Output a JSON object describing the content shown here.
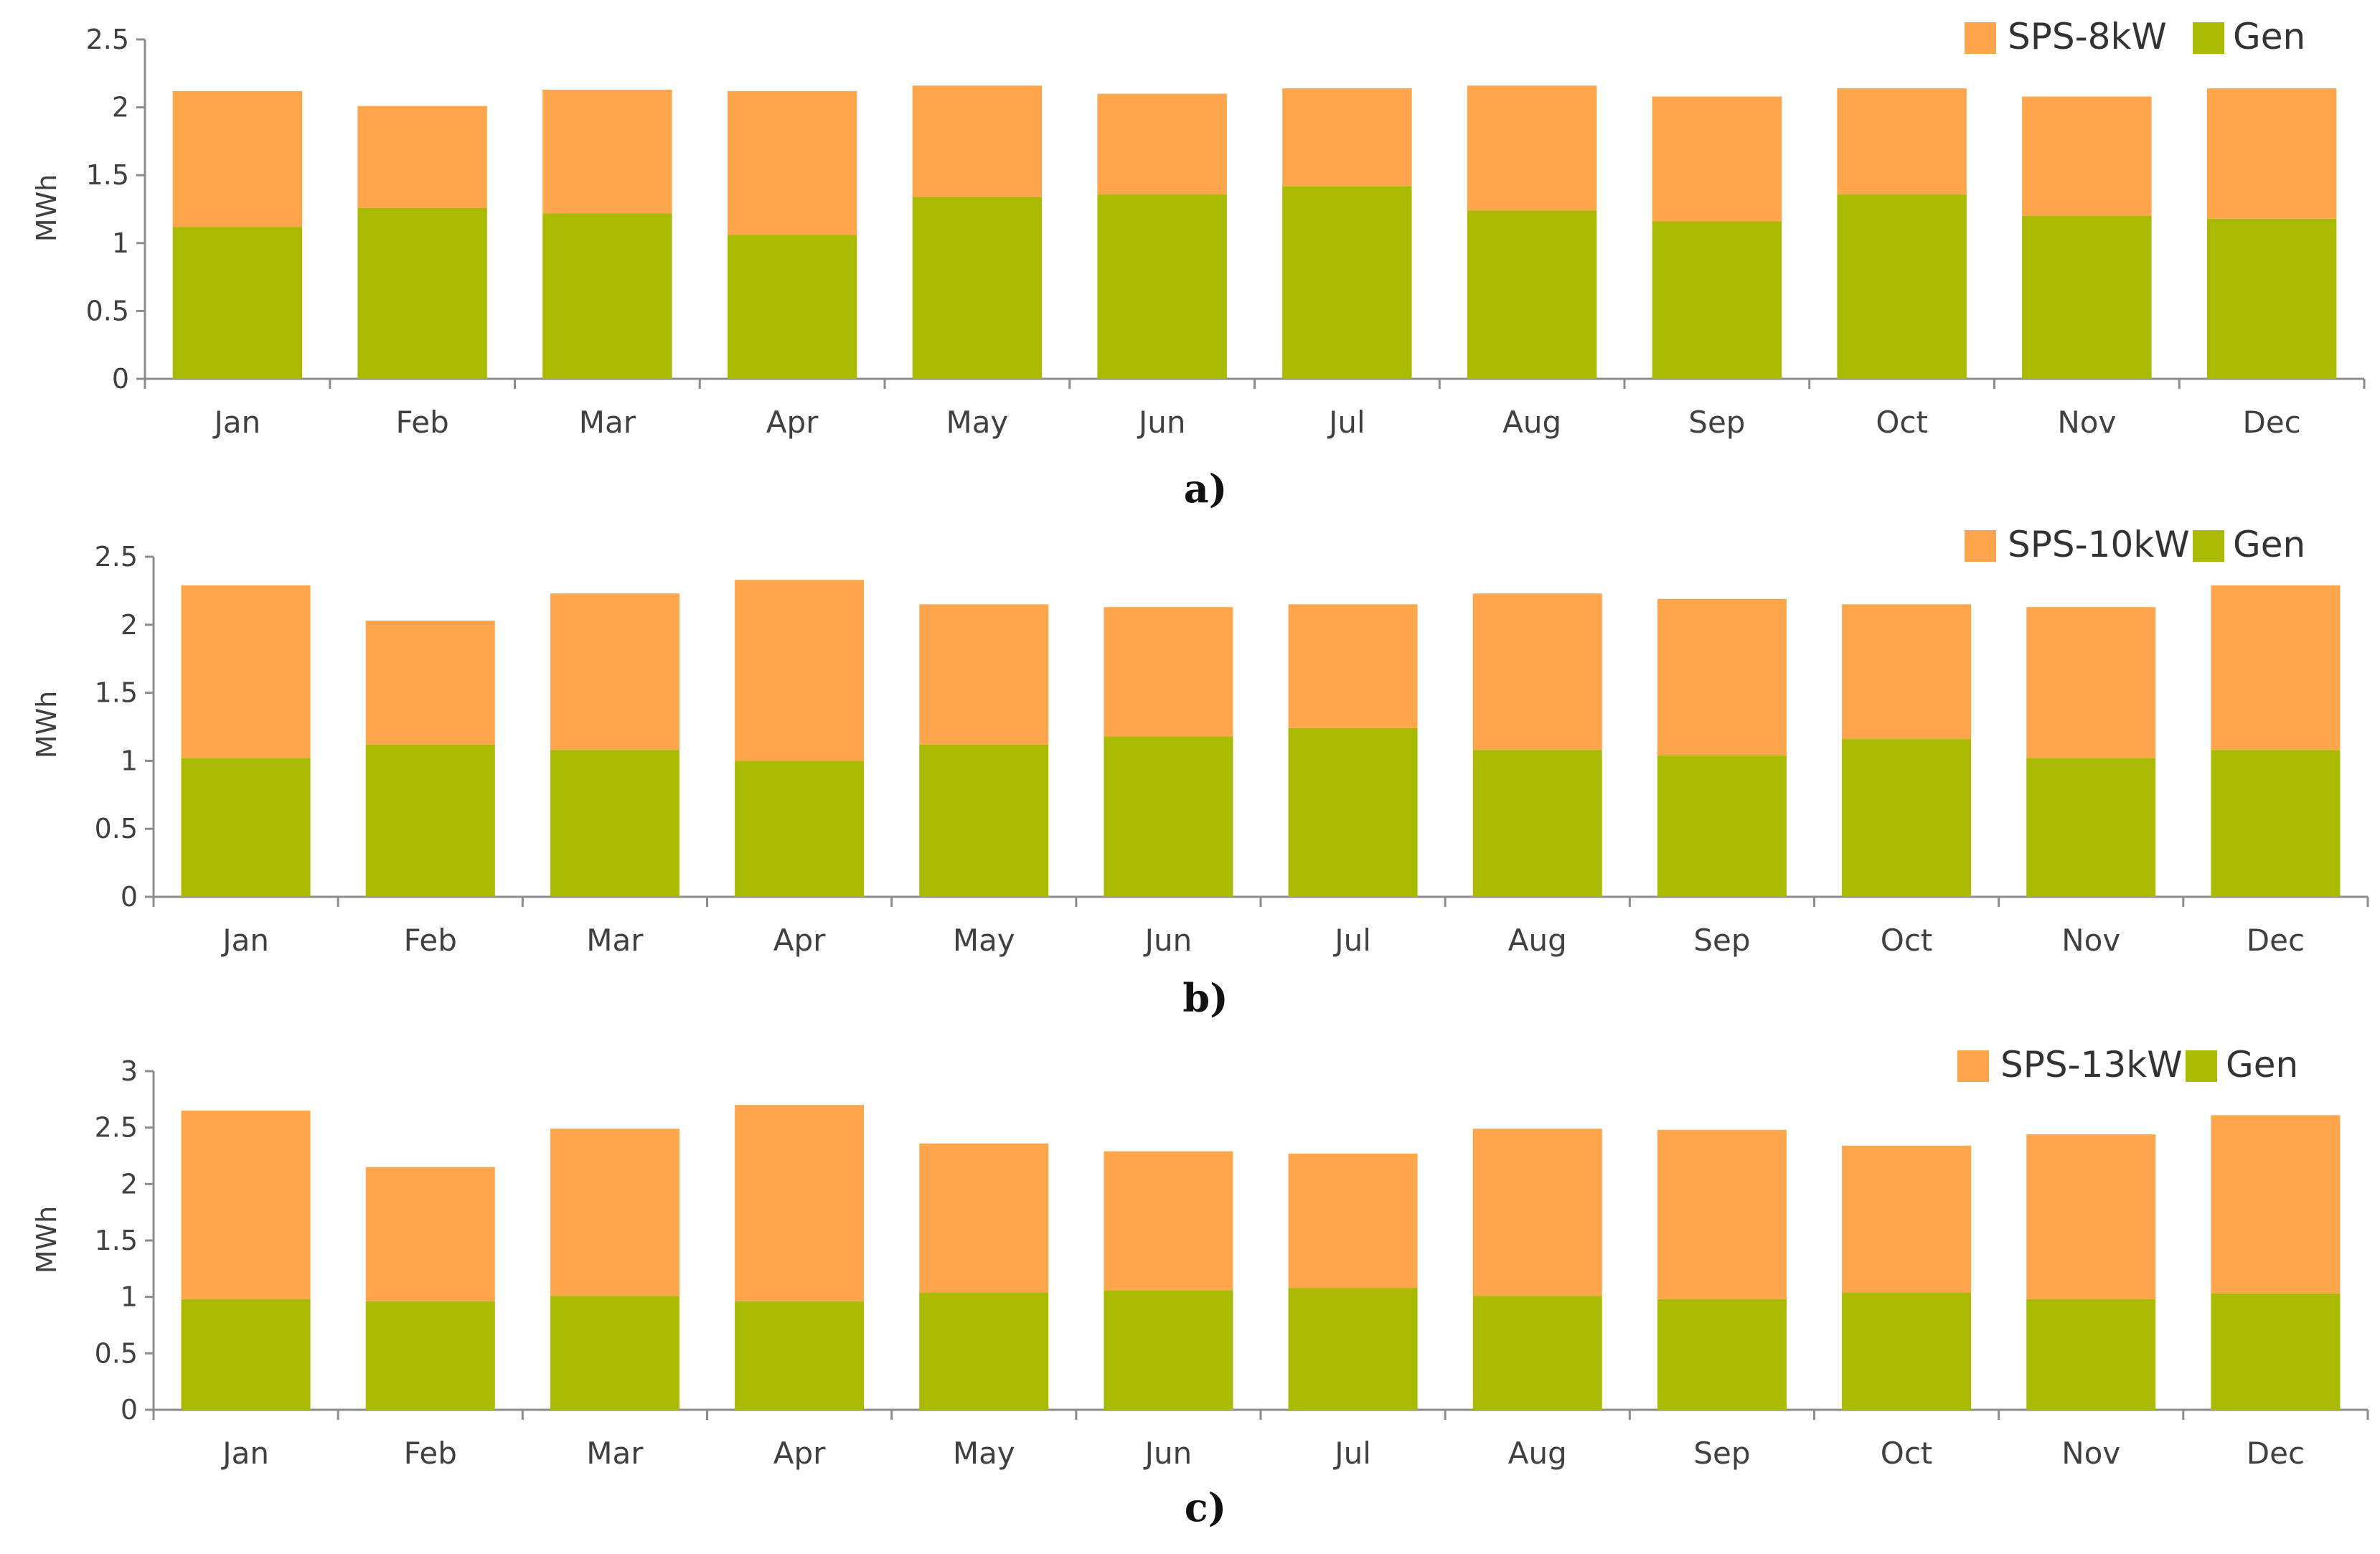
{
  "colors": {
    "sps": "#ffa64d",
    "gen": "#a9ba00",
    "axis": "#8c8c8c"
  },
  "chart_data": [
    {
      "type": "bar",
      "stacked": true,
      "panel_label": "a)",
      "ylabel": "MWh",
      "ylim": [
        0,
        2.5
      ],
      "yticks": [
        "0",
        "0.5",
        "1",
        "1.5",
        "2",
        "2.5"
      ],
      "categories": [
        "Jan",
        "Feb",
        "Mar",
        "Apr",
        "May",
        "Jun",
        "Jul",
        "Aug",
        "Sep",
        "Oct",
        "Nov",
        "Dec"
      ],
      "legend_position": "top-right",
      "series": [
        {
          "name": "Gen",
          "values": [
            1.12,
            1.26,
            1.22,
            1.06,
            1.34,
            1.36,
            1.42,
            1.24,
            1.16,
            1.36,
            1.2,
            1.18
          ]
        },
        {
          "name": "SPS-8kW",
          "values": [
            1.0,
            0.75,
            0.91,
            1.06,
            0.82,
            0.74,
            0.72,
            0.92,
            0.92,
            0.78,
            0.88,
            0.96
          ]
        }
      ]
    },
    {
      "type": "bar",
      "stacked": true,
      "panel_label": "b)",
      "ylabel": "MWh",
      "ylim": [
        0,
        2.5
      ],
      "yticks": [
        "0",
        "0.5",
        "1",
        "1.5",
        "2",
        "2.5"
      ],
      "categories": [
        "Jan",
        "Feb",
        "Mar",
        "Apr",
        "May",
        "Jun",
        "Jul",
        "Aug",
        "Sep",
        "Oct",
        "Nov",
        "Dec"
      ],
      "legend_position": "top-right",
      "series": [
        {
          "name": "Gen",
          "values": [
            1.02,
            1.12,
            1.08,
            1.0,
            1.12,
            1.18,
            1.24,
            1.08,
            1.04,
            1.16,
            1.02,
            1.08
          ]
        },
        {
          "name": "SPS-10kW",
          "values": [
            1.27,
            0.91,
            1.15,
            1.33,
            1.03,
            0.95,
            0.91,
            1.15,
            1.15,
            0.99,
            1.11,
            1.21
          ]
        }
      ]
    },
    {
      "type": "bar",
      "stacked": true,
      "panel_label": "c)",
      "ylabel": "MWh",
      "ylim": [
        0,
        3
      ],
      "yticks": [
        "0",
        "0.5",
        "1",
        "1.5",
        "2",
        "2.5",
        "3"
      ],
      "categories": [
        "Jan",
        "Feb",
        "Mar",
        "Apr",
        "May",
        "Jun",
        "Jul",
        "Aug",
        "Sep",
        "Oct",
        "Nov",
        "Dec"
      ],
      "legend_position": "top-right",
      "series": [
        {
          "name": "Gen",
          "values": [
            0.98,
            0.96,
            1.01,
            0.96,
            1.04,
            1.06,
            1.08,
            1.01,
            0.98,
            1.04,
            0.98,
            1.03
          ]
        },
        {
          "name": "SPS-13kW",
          "values": [
            1.67,
            1.19,
            1.48,
            1.74,
            1.32,
            1.23,
            1.19,
            1.48,
            1.5,
            1.3,
            1.46,
            1.58
          ]
        }
      ]
    }
  ]
}
